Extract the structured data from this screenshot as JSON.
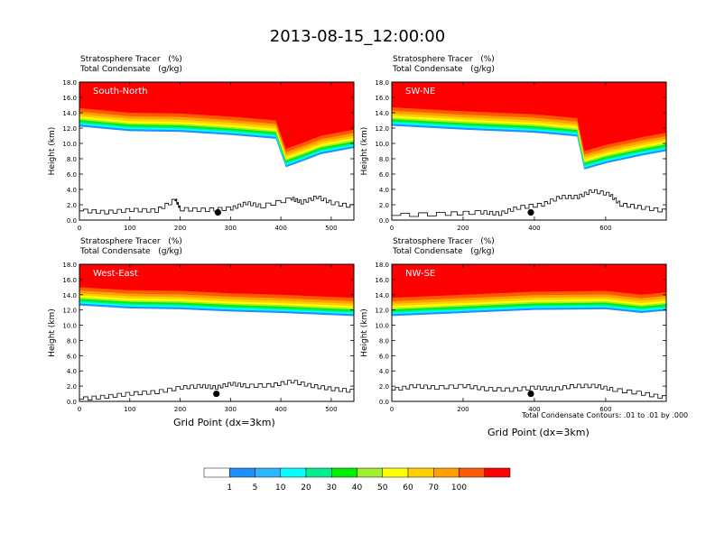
{
  "figure": {
    "title": "2013-08-15_12:00:00",
    "contour_note": "Total Condensate Contours: .01 to .01 by .000",
    "xlabel": "Grid Point (dx=3km)"
  },
  "colorbar": {
    "colors": [
      "#ffffff",
      "#1e90ff",
      "#2db5ff",
      "#00ffff",
      "#00ee90",
      "#00ee00",
      "#a0ee30",
      "#ffff00",
      "#ffd000",
      "#ffa000",
      "#ff5a00",
      "#ff0000"
    ],
    "labels": [
      "1",
      "5",
      "10",
      "20",
      "30",
      "40",
      "50",
      "60",
      "70",
      "100"
    ]
  },
  "chart_data": [
    {
      "type": "area",
      "name": "South-North",
      "subtitle_1": "Stratosphere Tracer   (%)",
      "subtitle_2": "Total Condensate   (g/kg)",
      "ylabel": "Height (km)",
      "xlabel": "",
      "xlim": [
        0,
        545
      ],
      "ylim": [
        0,
        18
      ],
      "xticks": [
        "0",
        "100",
        "200",
        "300",
        "400",
        "500"
      ],
      "yticks": [
        "0.0",
        "2.0",
        "4.0",
        "6.0",
        "8.0",
        "10.0",
        "12.0",
        "14.0",
        "16.0",
        "18.0"
      ],
      "tropopause_km": [
        [
          0,
          14.6
        ],
        [
          100,
          14.0
        ],
        [
          200,
          13.9
        ],
        [
          300,
          13.5
        ],
        [
          390,
          13.0
        ],
        [
          410,
          9.3
        ],
        [
          440,
          10.0
        ],
        [
          480,
          11.0
        ],
        [
          545,
          11.8
        ]
      ],
      "terrain_km": [
        [
          0,
          1.2
        ],
        [
          50,
          1.0
        ],
        [
          100,
          1.3
        ],
        [
          150,
          1.2
        ],
        [
          190,
          2.7
        ],
        [
          200,
          1.4
        ],
        [
          250,
          1.3
        ],
        [
          300,
          1.5
        ],
        [
          330,
          2.2
        ],
        [
          360,
          1.8
        ],
        [
          420,
          2.8
        ],
        [
          440,
          2.3
        ],
        [
          470,
          3.0
        ],
        [
          500,
          2.2
        ],
        [
          545,
          1.7
        ]
      ],
      "marker": [
        275,
        1.0
      ]
    },
    {
      "type": "area",
      "name": "SW-NE",
      "subtitle_1": "Stratosphere Tracer   (%)",
      "subtitle_2": "Total Condensate   (g/kg)",
      "ylabel": "Height (km)",
      "xlabel": "",
      "xlim": [
        0,
        770
      ],
      "ylim": [
        0,
        18
      ],
      "xticks": [
        "0",
        "200",
        "400",
        "600"
      ],
      "yticks": [
        "0.0",
        "2.0",
        "4.0",
        "6.0",
        "8.0",
        "10.0",
        "12.0",
        "14.0",
        "16.0",
        "18.0"
      ],
      "tropopause_km": [
        [
          0,
          14.7
        ],
        [
          200,
          14.2
        ],
        [
          400,
          13.8
        ],
        [
          520,
          13.3
        ],
        [
          540,
          9.0
        ],
        [
          600,
          9.8
        ],
        [
          700,
          10.8
        ],
        [
          770,
          11.4
        ]
      ],
      "terrain_km": [
        [
          0,
          0.6
        ],
        [
          150,
          0.8
        ],
        [
          250,
          1.0
        ],
        [
          300,
          0.8
        ],
        [
          350,
          1.6
        ],
        [
          420,
          2.0
        ],
        [
          470,
          3.0
        ],
        [
          520,
          3.0
        ],
        [
          560,
          3.8
        ],
        [
          610,
          3.3
        ],
        [
          640,
          2.0
        ],
        [
          700,
          1.6
        ],
        [
          770,
          1.1
        ]
      ],
      "marker": [
        390,
        1.0
      ]
    },
    {
      "type": "area",
      "name": "West-East",
      "subtitle_1": "Stratosphere Tracer   (%)",
      "subtitle_2": "Total Condensate   (g/kg)",
      "ylabel": "Height (km)",
      "xlabel": "Grid Point (dx=3km)",
      "xlim": [
        0,
        545
      ],
      "ylim": [
        0,
        18
      ],
      "xticks": [
        "0",
        "100",
        "200",
        "300",
        "400",
        "500"
      ],
      "yticks": [
        "0.0",
        "2.0",
        "4.0",
        "6.0",
        "8.0",
        "10.0",
        "12.0",
        "14.0",
        "16.0",
        "18.0"
      ],
      "tropopause_km": [
        [
          0,
          15.0
        ],
        [
          100,
          14.6
        ],
        [
          200,
          14.5
        ],
        [
          300,
          14.2
        ],
        [
          400,
          14.0
        ],
        [
          545,
          13.6
        ]
      ],
      "terrain_km": [
        [
          0,
          0.3
        ],
        [
          50,
          0.6
        ],
        [
          100,
          1.0
        ],
        [
          150,
          1.2
        ],
        [
          200,
          1.8
        ],
        [
          240,
          2.0
        ],
        [
          270,
          1.8
        ],
        [
          300,
          2.3
        ],
        [
          330,
          2.0
        ],
        [
          380,
          2.1
        ],
        [
          420,
          2.6
        ],
        [
          460,
          2.0
        ],
        [
          500,
          1.6
        ],
        [
          545,
          1.3
        ]
      ],
      "marker": [
        272,
        1.0
      ]
    },
    {
      "type": "area",
      "name": "NW-SE",
      "subtitle_1": "Stratosphere Tracer   (%)",
      "subtitle_2": "Total Condensate   (g/kg)",
      "ylabel": "Height (km)",
      "xlabel": "Grid Point (dx=3km)",
      "xlim": [
        0,
        770
      ],
      "ylim": [
        0,
        18
      ],
      "xticks": [
        "0",
        "200",
        "400",
        "600"
      ],
      "yticks": [
        "0.0",
        "2.0",
        "4.0",
        "6.0",
        "8.0",
        "10.0",
        "12.0",
        "14.0",
        "16.0",
        "18.0"
      ],
      "tropopause_km": [
        [
          0,
          13.6
        ],
        [
          200,
          14.0
        ],
        [
          400,
          14.4
        ],
        [
          600,
          14.5
        ],
        [
          700,
          14.0
        ],
        [
          770,
          14.3
        ]
      ],
      "terrain_km": [
        [
          0,
          1.5
        ],
        [
          60,
          2.0
        ],
        [
          120,
          1.8
        ],
        [
          200,
          2.0
        ],
        [
          260,
          1.6
        ],
        [
          330,
          1.5
        ],
        [
          400,
          1.8
        ],
        [
          450,
          1.6
        ],
        [
          510,
          2.0
        ],
        [
          570,
          2.0
        ],
        [
          620,
          1.5
        ],
        [
          700,
          1.0
        ],
        [
          770,
          0.4
        ]
      ],
      "marker": [
        390,
        1.0
      ]
    }
  ]
}
